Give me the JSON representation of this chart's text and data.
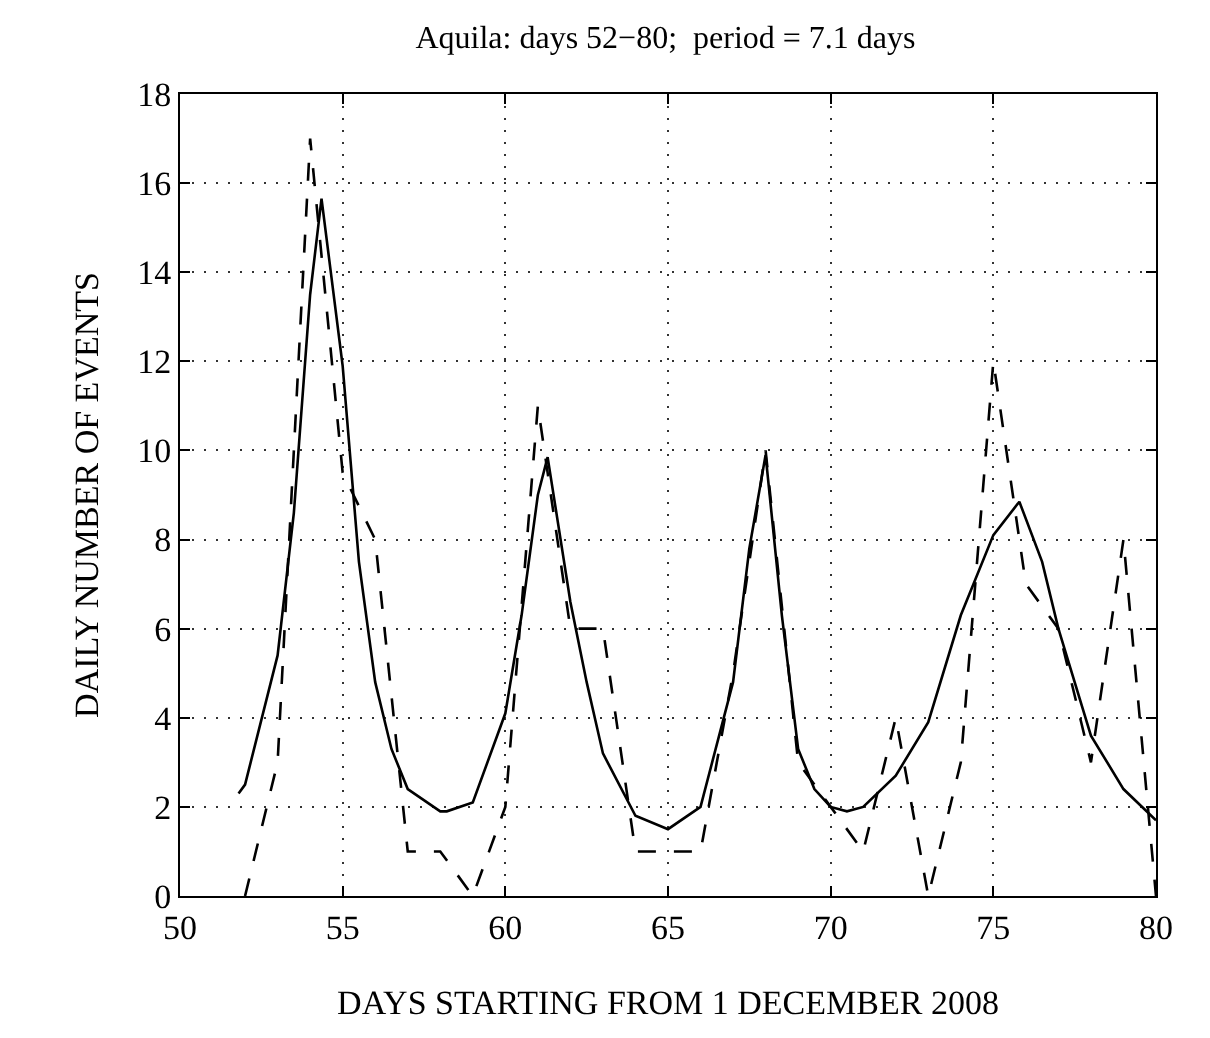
{
  "chart_data": {
    "type": "line",
    "title": "Aquila: days 52−80;  period = 7.1 days",
    "xlabel": "DAYS STARTING FROM 1 DECEMBER 2008",
    "ylabel": "DAILY NUMBER OF EVENTS",
    "xlim": [
      50,
      80
    ],
    "xticks": [
      50,
      55,
      60,
      65,
      70,
      75,
      80
    ],
    "ylim": [
      0,
      18
    ],
    "yticks": [
      0,
      2,
      4,
      6,
      8,
      10,
      12,
      14,
      16,
      18
    ],
    "grid": true,
    "marker": "none",
    "series": [
      {
        "color": "#000000",
        "line_style": "dashed",
        "x": [
          52,
          53,
          54,
          55,
          56,
          57,
          58,
          59,
          60,
          61,
          62,
          63,
          64,
          65,
          66,
          67,
          68,
          69,
          70,
          71,
          72,
          73,
          74,
          75,
          76,
          77,
          78,
          79,
          80
        ],
        "values": [
          0,
          3,
          17,
          9.5,
          8,
          1,
          1,
          0,
          2,
          11,
          6,
          6,
          1,
          1,
          1,
          5,
          10,
          3,
          2,
          1,
          4,
          0,
          3,
          12,
          7,
          6,
          3,
          8,
          0
        ]
      },
      {
        "color": "#000000",
        "line_style": "solid",
        "x": [
          51.8,
          52,
          53,
          53.5,
          54,
          54.35,
          55,
          55.5,
          56,
          56.5,
          57,
          58,
          58.2,
          59,
          60,
          60.5,
          61,
          61.3,
          62,
          62.5,
          63,
          64,
          65,
          66,
          67,
          67.5,
          68,
          68.5,
          69,
          69.5,
          70,
          70.5,
          71,
          72,
          73,
          74,
          75,
          75.8,
          76.5,
          77,
          78,
          79,
          80
        ],
        "values": [
          2.3,
          2.5,
          5.4,
          8.6,
          13.5,
          15.65,
          11.9,
          7.5,
          4.8,
          3.3,
          2.4,
          1.9,
          1.9,
          2.1,
          4.1,
          6.3,
          9,
          9.85,
          6.6,
          4.8,
          3.2,
          1.8,
          1.5,
          2,
          4.8,
          7.8,
          9.9,
          6.3,
          3.3,
          2.4,
          2,
          1.9,
          2,
          2.7,
          3.9,
          6.3,
          8.1,
          8.85,
          7.5,
          6,
          3.6,
          2.4,
          1.7
        ]
      }
    ]
  }
}
